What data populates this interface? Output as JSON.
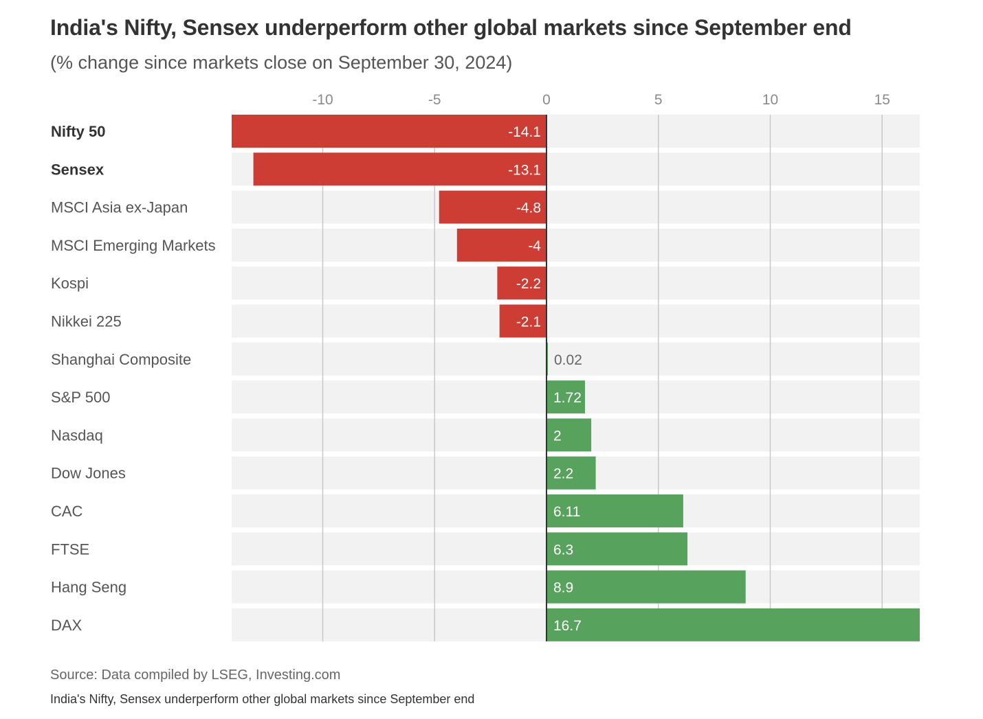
{
  "chart_data": {
    "type": "bar",
    "orientation": "horizontal",
    "title": "India's Nifty, Sensex underperform other global markets since September end",
    "subtitle": "(% change since markets close on September 30, 2024)",
    "xticks": [
      "-10",
      "-5",
      "0",
      "5",
      "10",
      "15"
    ],
    "xtick_values": [
      -10,
      -5,
      0,
      5,
      10,
      15
    ],
    "xlim": [
      -14.1,
      16.7
    ],
    "categories": [
      "Nifty 50",
      "Sensex",
      "MSCI Asia ex-Japan",
      "MSCI Emerging Markets",
      "Kospi",
      "Nikkei 225",
      "Shanghai Composite",
      "S&P 500",
      "Nasdaq",
      "Dow Jones",
      "CAC",
      "FTSE",
      "Hang Seng",
      "DAX"
    ],
    "bold_categories": [
      "Nifty 50",
      "Sensex"
    ],
    "values": [
      -14.1,
      -13.1,
      -4.8,
      -4,
      -2.2,
      -2.1,
      0.02,
      1.72,
      2,
      2.2,
      6.11,
      6.3,
      8.9,
      16.7
    ],
    "value_labels": [
      "-14.1",
      "-13.1",
      "-4.8",
      "-4",
      "-2.2",
      "-2.1",
      "0.02",
      "1.72",
      "2",
      "2.2",
      "6.11",
      "6.3",
      "8.9",
      "16.7"
    ],
    "colors": {
      "negative": "#cd3d33",
      "positive": "#57a25d",
      "track": "#f2f2f2",
      "grid": "#c8c8c8",
      "zero_line": "#333333"
    },
    "source": "Source: Data compiled by LSEG, Investing.com",
    "caption": "India's Nifty, Sensex underperform other global markets since September end"
  }
}
